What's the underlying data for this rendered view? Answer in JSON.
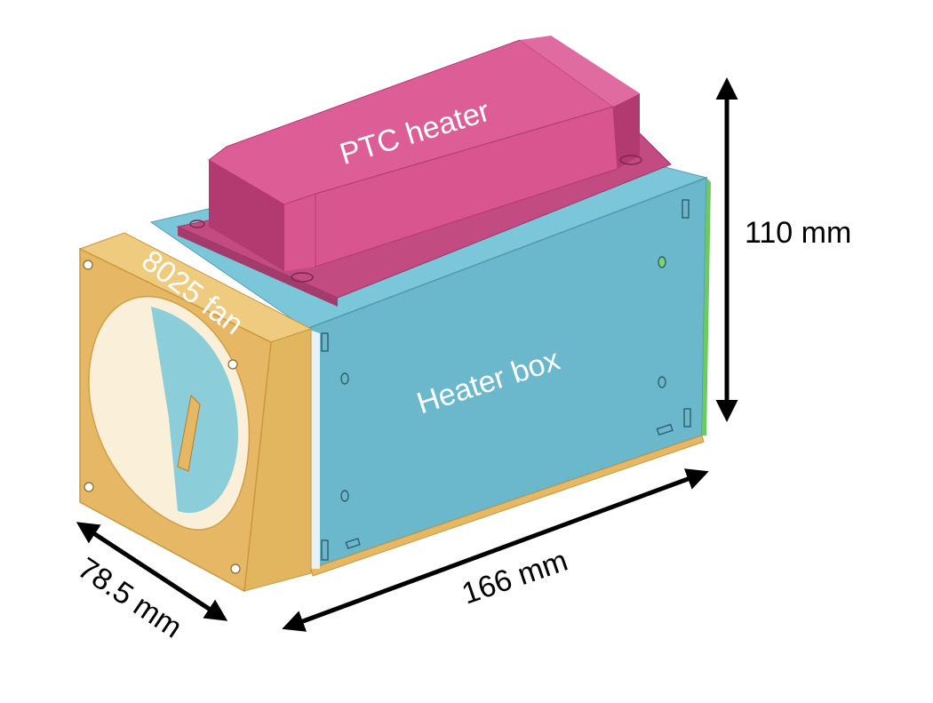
{
  "labels": {
    "ptc_heater": "PTC heater",
    "fan": "8025 fan",
    "heater_box": "Heater box"
  },
  "dimensions": {
    "height": "110 mm",
    "length": "166 mm",
    "width": "78.5 mm"
  },
  "colors": {
    "box": "#6BB8CC",
    "box_top": "#7BC6D8",
    "box_dark": "#4F9AAE",
    "fan": "#E6B866",
    "fan_dark": "#C9983E",
    "heater": "#D9558F",
    "heater_dark": "#B23A71",
    "heater_top": "#E06BA0",
    "green_edge": "#6CCB5F",
    "arrow": "#000000"
  }
}
